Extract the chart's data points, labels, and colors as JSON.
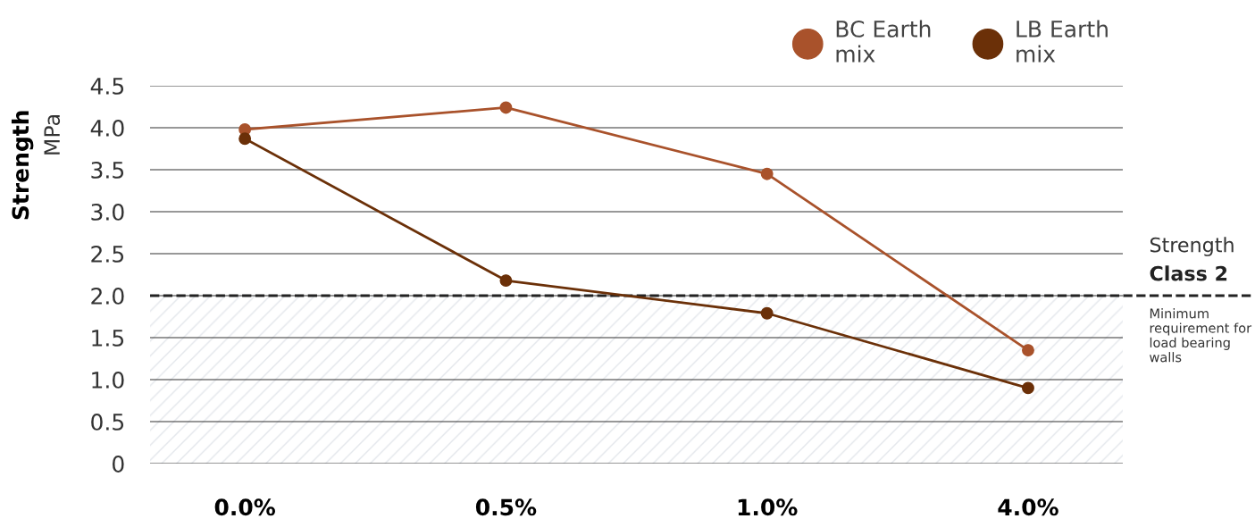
{
  "chart_data": {
    "type": "line",
    "ylabel": "Strength",
    "annotations": [
      "MPa"
    ],
    "categories": [
      "0.0%",
      "0.5%",
      "1.0%",
      "4.0%"
    ],
    "series": [
      {
        "name": "BC Earth mix",
        "color": "#a9522b",
        "values": [
          3.98,
          4.24,
          3.45,
          1.35
        ]
      },
      {
        "name": "LB Earth mix",
        "color": "#6b3008",
        "values": [
          3.87,
          2.18,
          1.79,
          0.9
        ]
      }
    ],
    "ylim": [
      0,
      4.5
    ],
    "yticks": [
      0,
      0.5,
      {
        "value": 1,
        "label": "1.0"
      },
      1.5,
      {
        "value": 2,
        "label": "2.0"
      },
      2.5,
      {
        "value": 3,
        "label": "3.0"
      },
      3.5,
      {
        "value": 4,
        "label": "4.0"
      },
      4.5
    ],
    "grid": "y",
    "legend": "top right",
    "marker": "circle",
    "line_style": "solid",
    "ref_lines": [
      {
        "axis": "y",
        "value": 2,
        "label": "Strength Class 2",
        "color": "#222222",
        "line_style": "dashed"
      }
    ],
    "bands": [
      {
        "axis": "y",
        "from": 0,
        "to": 2,
        "label": "Minimum requirement for load bearing walls",
        "color": "#e4e7ec"
      }
    ]
  }
}
